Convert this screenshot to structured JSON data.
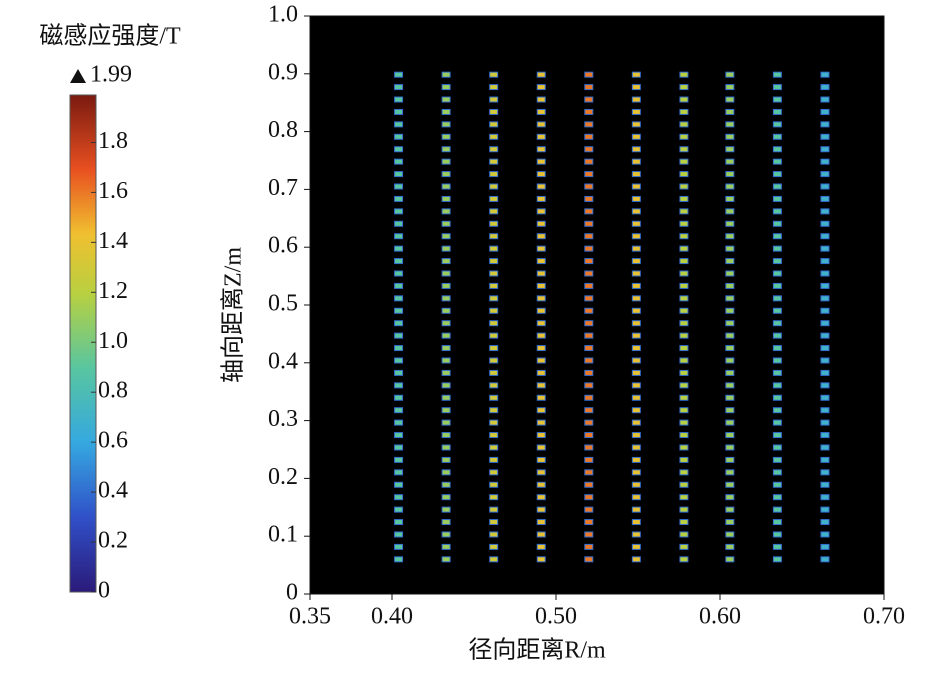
{
  "chart_data": {
    "type": "coil-field-map",
    "xlabel": "径向距离R/m",
    "ylabel": "轴向距离Z/m",
    "xlim": [
      0.35,
      0.7
    ],
    "xticks": [
      0.35,
      {
        "value": 0.4,
        "label": "0.40"
      },
      {
        "value": 0.5,
        "label": "0.50"
      },
      {
        "value": 0.6,
        "label": "0.60"
      },
      {
        "value": 0.7,
        "label": "0.70"
      }
    ],
    "ylim": [
      0,
      1
    ],
    "yticks": [
      0,
      0.1,
      0.2,
      0.3,
      0.4,
      0.5,
      0.6,
      0.7,
      0.8,
      0.9,
      {
        "value": 1,
        "label": "1.0"
      }
    ],
    "background": "#000000",
    "x": [
      0.404,
      0.433,
      0.462,
      0.491,
      0.52,
      0.549,
      0.578,
      0.606,
      0.635,
      0.664
    ],
    "values": [
      0.9,
      1.1,
      1.3,
      1.4,
      1.6,
      1.4,
      1.2,
      1.1,
      0.9,
      0.7
    ],
    "z": [
      0.06,
      0.0815,
      0.103,
      0.1245,
      0.146,
      0.1675,
      0.189,
      0.2105,
      0.232,
      0.2535,
      0.275,
      0.2965,
      0.318,
      0.3395,
      0.361,
      0.3825,
      0.404,
      0.4255,
      0.447,
      0.4685,
      0.49,
      0.5115,
      0.533,
      0.5545,
      0.576,
      0.5975,
      0.619,
      0.6405,
      0.662,
      0.6835,
      0.705,
      0.7265,
      0.748,
      0.7695,
      0.791,
      0.8125,
      0.834,
      0.8555,
      0.877,
      0.8985
    ],
    "colorbar": {
      "title": "磁感应强度/T",
      "max": 1.99,
      "clim": [
        0,
        1.99
      ],
      "ticks": [
        0,
        0.2,
        0.4,
        0.6,
        0.8,
        {
          "value": 1,
          "label": "1.0"
        },
        1.2,
        1.4,
        1.6,
        1.8
      ]
    }
  }
}
